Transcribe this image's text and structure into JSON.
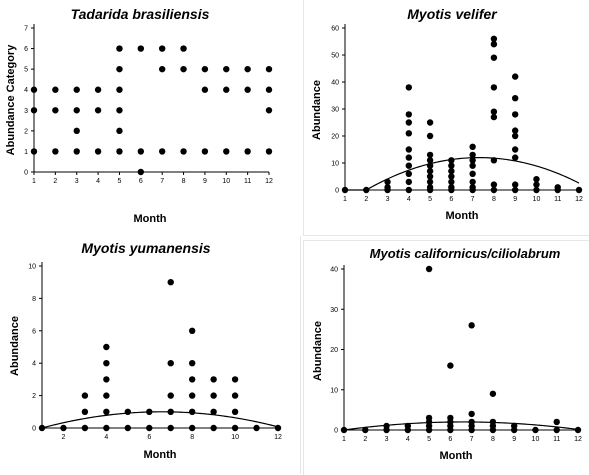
{
  "chart_data": [
    {
      "type": "scatter",
      "title": "Tadarida brasiliensis",
      "xlabel": "Month",
      "ylabel": "Abundance Category",
      "xlim": [
        1,
        12
      ],
      "ylim": [
        0,
        7
      ],
      "xticks": [
        1,
        2,
        3,
        4,
        5,
        6,
        7,
        8,
        9,
        10,
        11,
        12
      ],
      "yticks": [
        0,
        1,
        2,
        3,
        4,
        5,
        6,
        7
      ],
      "fit_curve": null,
      "points": [
        [
          1,
          1
        ],
        [
          1,
          3
        ],
        [
          1,
          4
        ],
        [
          2,
          1
        ],
        [
          2,
          3
        ],
        [
          2,
          4
        ],
        [
          3,
          1
        ],
        [
          3,
          2
        ],
        [
          3,
          3
        ],
        [
          3,
          4
        ],
        [
          4,
          1
        ],
        [
          4,
          3
        ],
        [
          4,
          4
        ],
        [
          5,
          1
        ],
        [
          5,
          2
        ],
        [
          5,
          3
        ],
        [
          5,
          4
        ],
        [
          5,
          5
        ],
        [
          5,
          6
        ],
        [
          6,
          0
        ],
        [
          6,
          1
        ],
        [
          6,
          6
        ],
        [
          7,
          1
        ],
        [
          7,
          5
        ],
        [
          7,
          6
        ],
        [
          8,
          1
        ],
        [
          8,
          5
        ],
        [
          8,
          6
        ],
        [
          9,
          1
        ],
        [
          9,
          4
        ],
        [
          9,
          5
        ],
        [
          10,
          1
        ],
        [
          10,
          4
        ],
        [
          10,
          5
        ],
        [
          11,
          1
        ],
        [
          11,
          4
        ],
        [
          11,
          5
        ],
        [
          12,
          1
        ],
        [
          12,
          3
        ],
        [
          12,
          4
        ],
        [
          12,
          5
        ]
      ]
    },
    {
      "type": "scatter",
      "title": "Myotis velifer",
      "xlabel": "Month",
      "ylabel": "Abundance",
      "xlim": [
        1,
        12
      ],
      "ylim": [
        0,
        60
      ],
      "xticks": [
        1,
        2,
        3,
        4,
        5,
        6,
        7,
        8,
        9,
        10,
        11,
        12
      ],
      "yticks": [
        0,
        10,
        20,
        30,
        40,
        50,
        60
      ],
      "fit_curve": {
        "type": "quadratic",
        "vertex_x": 7.3,
        "vertex_y": 12,
        "zero_at_x": 2
      },
      "points": [
        [
          1,
          0
        ],
        [
          2,
          0
        ],
        [
          3,
          0
        ],
        [
          3,
          1
        ],
        [
          3,
          3
        ],
        [
          4,
          0
        ],
        [
          4,
          3
        ],
        [
          4,
          6
        ],
        [
          4,
          9
        ],
        [
          4,
          12
        ],
        [
          4,
          15
        ],
        [
          4,
          21
        ],
        [
          4,
          25
        ],
        [
          4,
          28
        ],
        [
          4,
          38
        ],
        [
          5,
          0
        ],
        [
          5,
          1
        ],
        [
          5,
          3
        ],
        [
          5,
          5
        ],
        [
          5,
          7
        ],
        [
          5,
          9
        ],
        [
          5,
          11
        ],
        [
          5,
          13
        ],
        [
          5,
          20
        ],
        [
          5,
          25
        ],
        [
          6,
          0
        ],
        [
          6,
          1
        ],
        [
          6,
          3
        ],
        [
          6,
          5
        ],
        [
          6,
          7
        ],
        [
          6,
          9
        ],
        [
          6,
          11
        ],
        [
          7,
          0
        ],
        [
          7,
          1
        ],
        [
          7,
          3
        ],
        [
          7,
          6
        ],
        [
          7,
          9
        ],
        [
          7,
          11
        ],
        [
          7,
          13
        ],
        [
          7,
          16
        ],
        [
          8,
          0
        ],
        [
          8,
          2
        ],
        [
          8,
          11
        ],
        [
          8,
          27
        ],
        [
          8,
          29
        ],
        [
          8,
          38
        ],
        [
          8,
          49
        ],
        [
          8,
          54
        ],
        [
          8,
          56
        ],
        [
          9,
          0
        ],
        [
          9,
          2
        ],
        [
          9,
          12
        ],
        [
          9,
          15
        ],
        [
          9,
          20
        ],
        [
          9,
          22
        ],
        [
          9,
          28
        ],
        [
          9,
          34
        ],
        [
          9,
          42
        ],
        [
          10,
          0
        ],
        [
          10,
          2
        ],
        [
          10,
          4
        ],
        [
          11,
          0
        ],
        [
          11,
          1
        ],
        [
          12,
          0
        ]
      ]
    },
    {
      "type": "scatter",
      "title": "Myotis yumanensis",
      "xlabel": "Month",
      "ylabel": "Abundance",
      "xlim": [
        1,
        12
      ],
      "ylim": [
        0,
        10
      ],
      "xticks": [
        2,
        4,
        6,
        8,
        10,
        12
      ],
      "yticks": [
        0,
        2,
        4,
        6,
        8,
        10
      ],
      "fit_curve": {
        "type": "quadratic",
        "vertex_x": 6.6,
        "vertex_y": 1,
        "zero_at_x": 1
      },
      "points": [
        [
          1,
          0
        ],
        [
          2,
          0
        ],
        [
          3,
          0
        ],
        [
          3,
          1
        ],
        [
          3,
          2
        ],
        [
          4,
          0
        ],
        [
          4,
          1
        ],
        [
          4,
          2
        ],
        [
          4,
          3
        ],
        [
          4,
          4
        ],
        [
          4,
          5
        ],
        [
          5,
          0
        ],
        [
          5,
          1
        ],
        [
          6,
          0
        ],
        [
          6,
          1
        ],
        [
          7,
          0
        ],
        [
          7,
          1
        ],
        [
          7,
          2
        ],
        [
          7,
          4
        ],
        [
          7,
          9
        ],
        [
          8,
          0
        ],
        [
          8,
          1
        ],
        [
          8,
          2
        ],
        [
          8,
          3
        ],
        [
          8,
          4
        ],
        [
          8,
          6
        ],
        [
          9,
          0
        ],
        [
          9,
          1
        ],
        [
          9,
          2
        ],
        [
          9,
          3
        ],
        [
          10,
          0
        ],
        [
          10,
          1
        ],
        [
          10,
          2
        ],
        [
          10,
          3
        ],
        [
          11,
          0
        ],
        [
          12,
          0
        ]
      ]
    },
    {
      "type": "scatter",
      "title": "Myotis californicus/ciliolabrum",
      "xlabel": "Month",
      "ylabel": "Abundance",
      "xlim": [
        1,
        12
      ],
      "ylim": [
        0,
        40
      ],
      "xticks": [
        1,
        2,
        3,
        4,
        5,
        6,
        7,
        8,
        9,
        10,
        11,
        12
      ],
      "yticks": [
        0,
        10,
        20,
        30,
        40
      ],
      "fit_curve": {
        "type": "quadratic",
        "vertex_x": 6.6,
        "vertex_y": 2,
        "zero_at_x": 1
      },
      "points": [
        [
          1,
          0
        ],
        [
          2,
          0
        ],
        [
          3,
          0
        ],
        [
          3,
          1
        ],
        [
          4,
          0
        ],
        [
          4,
          1
        ],
        [
          5,
          0
        ],
        [
          5,
          1
        ],
        [
          5,
          2
        ],
        [
          5,
          3
        ],
        [
          5,
          40
        ],
        [
          6,
          0
        ],
        [
          6,
          1
        ],
        [
          6,
          2
        ],
        [
          6,
          3
        ],
        [
          6,
          16
        ],
        [
          7,
          0
        ],
        [
          7,
          1
        ],
        [
          7,
          2
        ],
        [
          7,
          4
        ],
        [
          7,
          26
        ],
        [
          8,
          0
        ],
        [
          8,
          1
        ],
        [
          8,
          2
        ],
        [
          8,
          9
        ],
        [
          9,
          0
        ],
        [
          9,
          1
        ],
        [
          10,
          0
        ],
        [
          11,
          0
        ],
        [
          11,
          2
        ],
        [
          12,
          0
        ]
      ]
    }
  ]
}
